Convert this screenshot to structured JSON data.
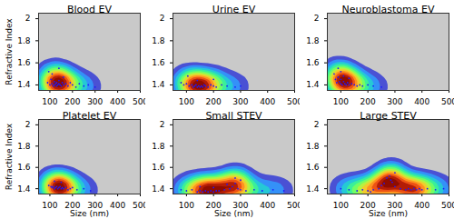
{
  "chart_data": [
    {
      "type": "scatter",
      "title": "Blood EV",
      "ylabel": "Refractive Index",
      "xlim": [
        50,
        500
      ],
      "ylim": [
        1.35,
        2.05
      ],
      "xticks": [
        100,
        200,
        300,
        400,
        500
      ],
      "yticks": [
        1.4,
        1.6,
        1.8,
        2
      ],
      "x": [
        90,
        100,
        105,
        110,
        115,
        120,
        120,
        125,
        130,
        130,
        135,
        140,
        140,
        145,
        150,
        155,
        160,
        170,
        180,
        190,
        200,
        215,
        230,
        250,
        270,
        300,
        110,
        140,
        160,
        95
      ],
      "y": [
        1.42,
        1.4,
        1.45,
        1.41,
        1.39,
        1.43,
        1.4,
        1.41,
        1.42,
        1.39,
        1.4,
        1.41,
        1.44,
        1.4,
        1.39,
        1.42,
        1.4,
        1.41,
        1.39,
        1.42,
        1.4,
        1.38,
        1.41,
        1.39,
        1.4,
        1.38,
        1.5,
        1.55,
        1.47,
        1.52
      ]
    },
    {
      "type": "scatter",
      "title": "Urine EV",
      "xlim": [
        50,
        500
      ],
      "ylim": [
        1.35,
        2.05
      ],
      "xticks": [
        100,
        200,
        300,
        400,
        500
      ],
      "yticks": [
        1.4,
        1.6,
        1.8,
        2
      ],
      "x": [
        80,
        90,
        100,
        110,
        120,
        125,
        130,
        135,
        140,
        145,
        150,
        155,
        160,
        165,
        170,
        180,
        190,
        200,
        210,
        230,
        250,
        280,
        300,
        105,
        140,
        200
      ],
      "y": [
        1.42,
        1.4,
        1.41,
        1.39,
        1.4,
        1.38,
        1.39,
        1.4,
        1.38,
        1.39,
        1.38,
        1.39,
        1.38,
        1.4,
        1.39,
        1.38,
        1.4,
        1.39,
        1.38,
        1.4,
        1.39,
        1.38,
        1.39,
        1.48,
        1.44,
        1.45
      ]
    },
    {
      "type": "scatter",
      "title": "Neuroblastoma EV",
      "xlim": [
        50,
        500
      ],
      "ylim": [
        1.35,
        2.05
      ],
      "xticks": [
        100,
        200,
        300,
        400,
        500
      ],
      "yticks": [
        1.4,
        1.6,
        1.8,
        2
      ],
      "x": [
        75,
        80,
        85,
        90,
        95,
        100,
        100,
        105,
        110,
        115,
        120,
        125,
        130,
        140,
        150,
        160,
        170,
        180,
        200,
        220,
        250,
        90,
        100,
        110,
        130
      ],
      "y": [
        1.5,
        1.45,
        1.42,
        1.47,
        1.43,
        1.41,
        1.45,
        1.4,
        1.43,
        1.41,
        1.4,
        1.42,
        1.4,
        1.41,
        1.4,
        1.39,
        1.4,
        1.39,
        1.4,
        1.39,
        1.38,
        1.55,
        1.52,
        1.48,
        1.46
      ]
    },
    {
      "type": "scatter",
      "title": "Platelet EV",
      "xlabel": "Size (nm)",
      "ylabel": "Refractive Index",
      "xlim": [
        50,
        500
      ],
      "ylim": [
        1.35,
        2.05
      ],
      "xticks": [
        100,
        200,
        300,
        400,
        500
      ],
      "yticks": [
        1.4,
        1.6,
        1.8,
        2
      ],
      "x": [
        95,
        105,
        110,
        115,
        120,
        125,
        130,
        135,
        140,
        145,
        150,
        155,
        160,
        170,
        180,
        190,
        200,
        220,
        250,
        280,
        120,
        150
      ],
      "y": [
        1.43,
        1.42,
        1.41,
        1.42,
        1.4,
        1.41,
        1.42,
        1.4,
        1.41,
        1.42,
        1.4,
        1.41,
        1.4,
        1.41,
        1.39,
        1.4,
        1.41,
        1.39,
        1.4,
        1.38,
        1.47,
        1.46
      ]
    },
    {
      "type": "scatter",
      "title": "Small STEV",
      "xlabel": "Size (nm)",
      "xlim": [
        50,
        500
      ],
      "ylim": [
        1.35,
        2.05
      ],
      "xticks": [
        100,
        200,
        300,
        400,
        500
      ],
      "yticks": [
        1.4,
        1.6,
        1.8,
        2
      ],
      "x": [
        80,
        100,
        120,
        140,
        150,
        160,
        170,
        180,
        190,
        200,
        210,
        220,
        240,
        260,
        270,
        280,
        290,
        300,
        320,
        350,
        380,
        420,
        460,
        150,
        200,
        280,
        300,
        250
      ],
      "y": [
        1.39,
        1.38,
        1.39,
        1.37,
        1.38,
        1.37,
        1.38,
        1.37,
        1.38,
        1.37,
        1.38,
        1.38,
        1.39,
        1.4,
        1.42,
        1.45,
        1.4,
        1.39,
        1.38,
        1.39,
        1.38,
        1.39,
        1.38,
        1.42,
        1.41,
        1.5,
        1.48,
        1.44
      ]
    },
    {
      "type": "scatter",
      "title": "Large STEV",
      "xlabel": "Size (nm)",
      "xlim": [
        50,
        500
      ],
      "ylim": [
        1.35,
        2.05
      ],
      "xticks": [
        100,
        200,
        300,
        400,
        500
      ],
      "yticks": [
        1.4,
        1.6,
        1.8,
        2
      ],
      "x": [
        100,
        130,
        160,
        180,
        200,
        210,
        220,
        240,
        260,
        270,
        280,
        285,
        290,
        300,
        320,
        340,
        350,
        360,
        370,
        380,
        390,
        400,
        420,
        450,
        480,
        250,
        300
      ],
      "y": [
        1.4,
        1.39,
        1.38,
        1.39,
        1.38,
        1.37,
        1.39,
        1.4,
        1.45,
        1.5,
        1.52,
        1.48,
        1.46,
        1.42,
        1.4,
        1.39,
        1.4,
        1.39,
        1.4,
        1.39,
        1.4,
        1.39,
        1.4,
        1.39,
        1.4,
        1.43,
        1.55
      ]
    }
  ]
}
